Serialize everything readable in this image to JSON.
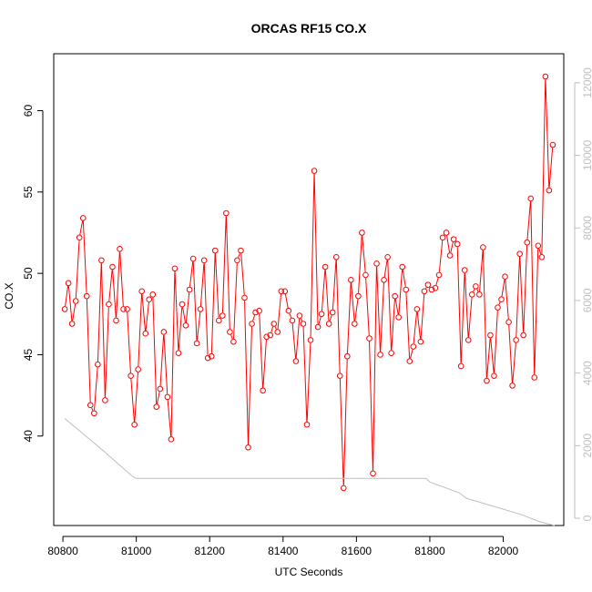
{
  "chart_data": {
    "type": "line",
    "title": "ORCAS RF15 CO.X",
    "xlabel": "UTC Seconds",
    "ylabel": "CO.X",
    "xlim": [
      80775,
      82165
    ],
    "ylim": [
      34.5,
      63.5
    ],
    "y2lim": [
      -200,
      12800
    ],
    "x_ticks": [
      80800,
      81000,
      81200,
      81400,
      81600,
      81800,
      82000
    ],
    "y_ticks": [
      40,
      45,
      50,
      55,
      60
    ],
    "y2_ticks": [
      0,
      2000,
      4000,
      6000,
      8000,
      10000,
      12000
    ],
    "grid": false,
    "colors": {
      "main_series": "#ff0000",
      "secondary_series": "#bebebe",
      "axis": "#000000",
      "right_axis": "#bebebe"
    },
    "series": [
      {
        "axis": "left",
        "style": "line+points",
        "x": [
          80805,
          80815,
          80825,
          80835,
          80845,
          80855,
          80865,
          80875,
          80885,
          80895,
          80905,
          80915,
          80925,
          80935,
          80945,
          80955,
          80965,
          80975,
          80985,
          80995,
          81005,
          81015,
          81025,
          81035,
          81045,
          81055,
          81065,
          81075,
          81085,
          81095,
          81105,
          81115,
          81125,
          81135,
          81145,
          81155,
          81165,
          81175,
          81185,
          81195,
          81205,
          81215,
          81225,
          81235,
          81245,
          81255,
          81265,
          81275,
          81285,
          81295,
          81305,
          81315,
          81325,
          81335,
          81345,
          81355,
          81365,
          81375,
          81385,
          81395,
          81405,
          81415,
          81425,
          81435,
          81445,
          81455,
          81465,
          81475,
          81485,
          81495,
          81505,
          81515,
          81525,
          81535,
          81545,
          81555,
          81565,
          81575,
          81585,
          81595,
          81605,
          81615,
          81625,
          81635,
          81645,
          81655,
          81665,
          81675,
          81685,
          81695,
          81705,
          81715,
          81725,
          81735,
          81745,
          81755,
          81765,
          81775,
          81785,
          81795,
          81805,
          81815,
          81825,
          81835,
          81845,
          81855,
          81865,
          81875,
          81885,
          81895,
          81905,
          81915,
          81925,
          81935,
          81945,
          81955,
          81965,
          81975,
          81985,
          81995,
          82005,
          82015,
          82025,
          82035,
          82045,
          82055,
          82065,
          82075,
          82085,
          82095,
          82105,
          82115,
          82125,
          82135
        ],
        "values": [
          47.8,
          49.4,
          46.9,
          48.3,
          52.2,
          53.4,
          48.6,
          41.9,
          41.4,
          44.4,
          50.8,
          42.2,
          48.1,
          50.4,
          47.1,
          51.5,
          47.8,
          47.8,
          43.7,
          40.7,
          44.1,
          48.9,
          46.3,
          48.4,
          48.7,
          41.8,
          42.9,
          46.4,
          42.4,
          39.8,
          50.3,
          45.1,
          48.1,
          46.8,
          49.0,
          50.9,
          45.7,
          47.8,
          50.8,
          44.8,
          44.9,
          51.4,
          47.1,
          47.4,
          53.7,
          46.4,
          45.8,
          50.8,
          51.4,
          48.5,
          39.3,
          46.9,
          47.6,
          47.7,
          42.8,
          46.1,
          46.2,
          46.9,
          46.4,
          48.9,
          48.9,
          47.7,
          47.1,
          44.6,
          47.4,
          46.9,
          40.7,
          45.9,
          56.3,
          46.7,
          47.5,
          50.4,
          46.9,
          47.6,
          51.0,
          43.7,
          36.8,
          44.9,
          49.6,
          46.9,
          48.6,
          52.5,
          49.9,
          46.0,
          37.7,
          50.6,
          45.0,
          49.6,
          51.0,
          45.1,
          48.6,
          47.3,
          50.4,
          49.0,
          44.6,
          45.5,
          47.8,
          45.8,
          48.9,
          49.3,
          49.0,
          49.1,
          49.9,
          52.2,
          52.5,
          51.1,
          52.1,
          51.8,
          44.3,
          50.2,
          45.9,
          48.7,
          49.2,
          48.7,
          51.6,
          43.4,
          46.2,
          43.7,
          47.9,
          48.4,
          49.8,
          47.0,
          43.1,
          45.9,
          51.2,
          46.2,
          51.9,
          54.6,
          43.6,
          51.7,
          51.0,
          62.1,
          55.1,
          57.9
        ]
      },
      {
        "axis": "right",
        "style": "line",
        "x": [
          80805,
          80900,
          80990,
          81000,
          81100,
          81200,
          81400,
          81600,
          81790,
          81800,
          81880,
          81900,
          81950,
          82050,
          82100,
          82140
        ],
        "values": [
          2750,
          1950,
          1150,
          1100,
          1100,
          1100,
          1100,
          1100,
          1100,
          1000,
          700,
          550,
          400,
          100,
          -100,
          -200
        ]
      }
    ]
  }
}
